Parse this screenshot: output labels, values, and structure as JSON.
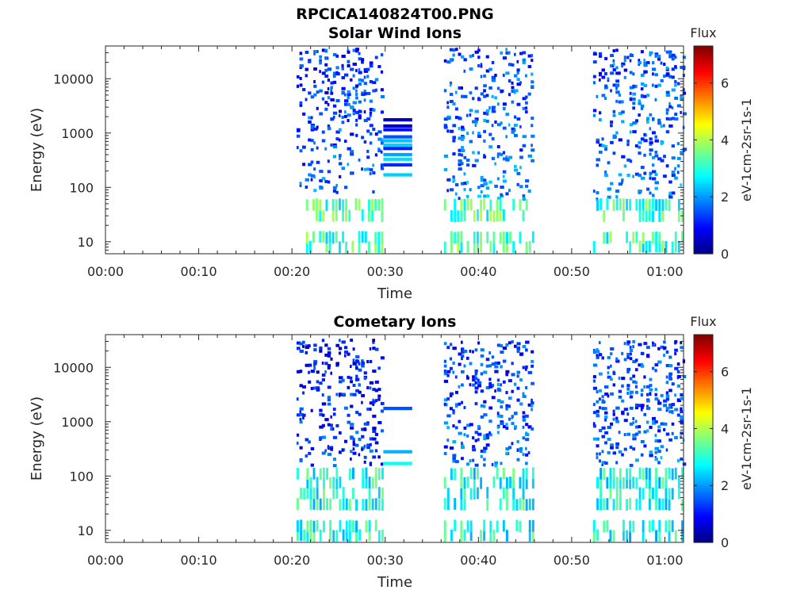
{
  "figure_title": "RPCICA140824T00.PNG",
  "chart_data": [
    {
      "type": "heatmap",
      "title": "Solar Wind Ions",
      "xlabel": "Time",
      "ylabel": "Energy (eV)",
      "x_tick_labels": [
        "00:00",
        "00:10",
        "00:20",
        "00:30",
        "00:40",
        "00:50",
        "01:00"
      ],
      "x_ticks_minutes": [
        0,
        10,
        20,
        30,
        40,
        50,
        60
      ],
      "x_range_minutes": [
        0,
        62
      ],
      "y_scale": "log",
      "y_range": [
        6,
        40000
      ],
      "y_tick_labels": [
        "10",
        "100",
        "1000",
        "10000"
      ],
      "y_ticks": [
        10,
        100,
        1000,
        10000
      ],
      "colorbar": {
        "title": "Flux",
        "label": "eV-1cm-2sr-1s-1",
        "ticks": [
          "0",
          "2",
          "4",
          "6"
        ],
        "range": [
          0,
          7.3
        ],
        "colormap": "jet"
      },
      "data_gaps_minutes": [
        [
          0,
          20.5
        ],
        [
          33,
          36.3
        ],
        [
          45.8,
          52.3
        ]
      ],
      "constant_bands": {
        "x_range_minutes": [
          29.8,
          32.9
        ],
        "energy_ev": [
          1750,
          1350,
          1150,
          850,
          720,
          600,
          520,
          400,
          330,
          260,
          170
        ],
        "flux": [
          0.5,
          0.6,
          1.0,
          1.5,
          2.3,
          2.4,
          1.1,
          2.1,
          2.5,
          1.2,
          2.4
        ]
      },
      "data_blocks": [
        {
          "x_range_minutes": [
            20.5,
            29.8
          ],
          "energy_range_ev": [
            80,
            35000
          ],
          "flux_typical": 1.6
        },
        {
          "x_range_minutes": [
            36.3,
            45.8
          ],
          "energy_range_ev": [
            60,
            35000
          ],
          "flux_typical": 1.8
        },
        {
          "x_range_minutes": [
            52.3,
            61.9
          ],
          "energy_range_ev": [
            60,
            35000
          ],
          "flux_typical": 1.8
        },
        {
          "x_range_minutes": [
            21.5,
            29.8
          ],
          "energy_range_ev": [
            6,
            50
          ],
          "flux_typical": 3.2
        },
        {
          "x_range_minutes": [
            36.3,
            45.8
          ],
          "energy_range_ev": [
            6,
            50
          ],
          "flux_typical": 3.3
        },
        {
          "x_range_minutes": [
            52.3,
            61.9
          ],
          "energy_range_ev": [
            6,
            50
          ],
          "flux_typical": 3.1
        }
      ]
    },
    {
      "type": "heatmap",
      "title": "Cometary Ions",
      "xlabel": "Time",
      "ylabel": "Energy (eV)",
      "x_tick_labels": [
        "00:00",
        "00:10",
        "00:20",
        "00:30",
        "00:40",
        "00:50",
        "01:00"
      ],
      "x_ticks_minutes": [
        0,
        10,
        20,
        30,
        40,
        50,
        60
      ],
      "x_range_minutes": [
        0,
        62
      ],
      "y_scale": "log",
      "y_range": [
        6,
        40000
      ],
      "y_tick_labels": [
        "10",
        "100",
        "1000",
        "10000"
      ],
      "y_ticks": [
        10,
        100,
        1000,
        10000
      ],
      "colorbar": {
        "title": "Flux",
        "label": "eV-1cm-2sr-1s-1",
        "ticks": [
          "0",
          "2",
          "4",
          "6"
        ],
        "range": [
          0,
          7.3
        ],
        "colormap": "jet"
      },
      "data_gaps_minutes": [
        [
          0,
          20.5
        ],
        [
          33,
          36.3
        ],
        [
          45.8,
          52.3
        ]
      ],
      "constant_bands": {
        "x_range_minutes": [
          29.8,
          32.9
        ],
        "energy_ev": [
          1750,
          280,
          170
        ],
        "flux": [
          1.5,
          2.2,
          2.8
        ]
      },
      "data_blocks": [
        {
          "x_range_minutes": [
            20.5,
            29.8
          ],
          "energy_range_ev": [
            150,
            35000
          ],
          "flux_typical": 1.3
        },
        {
          "x_range_minutes": [
            36.3,
            45.8
          ],
          "energy_range_ev": [
            150,
            30000
          ],
          "flux_typical": 1.6
        },
        {
          "x_range_minutes": [
            52.3,
            61.9
          ],
          "energy_range_ev": [
            150,
            30000
          ],
          "flux_typical": 1.6
        },
        {
          "x_range_minutes": [
            20.5,
            29.8
          ],
          "energy_range_ev": [
            6,
            120
          ],
          "flux_typical": 2.9
        },
        {
          "x_range_minutes": [
            36.3,
            45.8
          ],
          "energy_range_ev": [
            6,
            120
          ],
          "flux_typical": 2.9
        },
        {
          "x_range_minutes": [
            52.3,
            61.9
          ],
          "energy_range_ev": [
            6,
            120
          ],
          "flux_typical": 2.8
        }
      ]
    }
  ]
}
